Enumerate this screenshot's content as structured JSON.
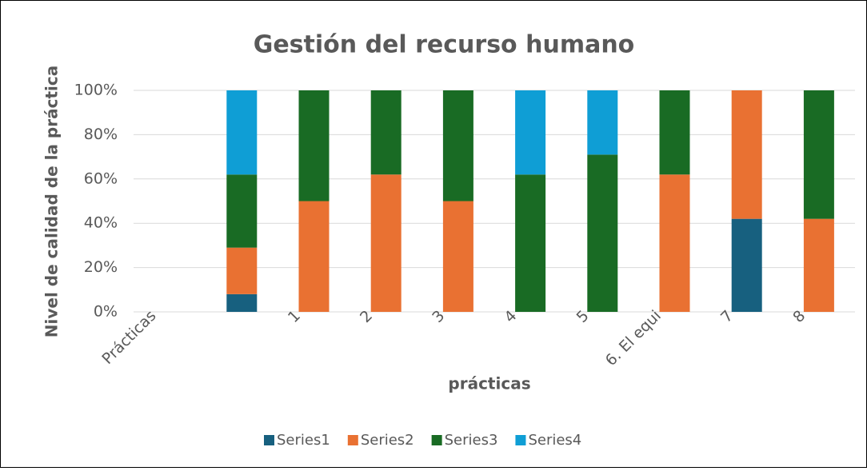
{
  "chart_data": {
    "type": "bar",
    "stacked": true,
    "title": "Gestión del recurso humano",
    "xlabel": "prácticas",
    "ylabel": "Nivel de calidad de la práctica",
    "categories": [
      "Prácticas",
      null,
      "1",
      "2",
      "3",
      "4",
      "5",
      "6. El equi",
      "7",
      "8"
    ],
    "series": [
      {
        "name": "Series1",
        "color": "#17607f",
        "values": [
          null,
          8,
          null,
          null,
          null,
          null,
          null,
          null,
          42,
          null
        ]
      },
      {
        "name": "Series2",
        "color": "#e97132",
        "values": [
          null,
          21,
          50,
          62,
          50,
          null,
          null,
          62,
          58,
          42
        ]
      },
      {
        "name": "Series3",
        "color": "#196b24",
        "values": [
          null,
          33,
          50,
          38,
          50,
          62,
          71,
          38,
          null,
          58
        ]
      },
      {
        "name": "Series4",
        "color": "#0f9ed5",
        "values": [
          null,
          38,
          null,
          null,
          null,
          38,
          29,
          null,
          null,
          null
        ]
      }
    ],
    "ylim": [
      0,
      100
    ],
    "yticks": [
      {
        "value": 0,
        "label": "0%"
      },
      {
        "value": 20,
        "label": "20%"
      },
      {
        "value": 40,
        "label": "40%"
      },
      {
        "value": 60,
        "label": "60%"
      },
      {
        "value": 80,
        "label": "80%"
      },
      {
        "value": 100,
        "label": "100%"
      }
    ],
    "grid": true,
    "legend": "bottom"
  }
}
